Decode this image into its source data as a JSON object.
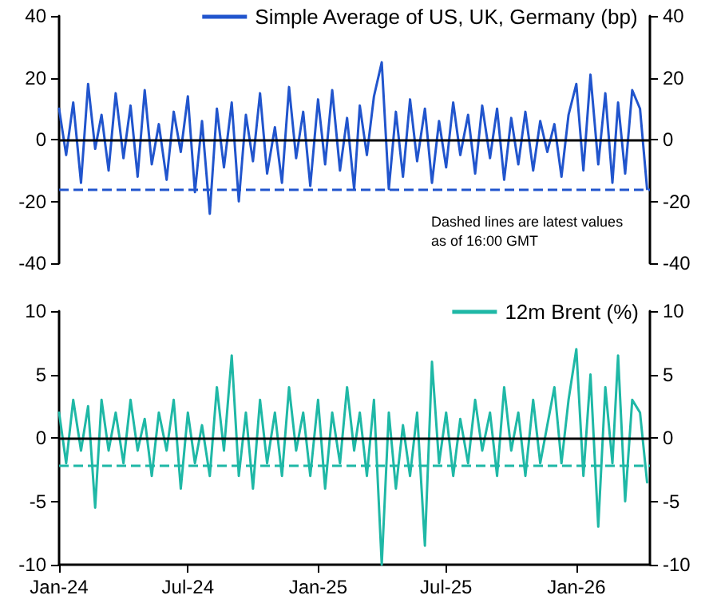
{
  "chart_data": [
    {
      "type": "line",
      "tick_labels": "y",
      "legend": "top right",
      "grid": false,
      "marker": "none",
      "line_style": "solid",
      "xlim": [
        "2024-01-01",
        "2026-04-15"
      ],
      "ylim": [
        -40,
        40
      ],
      "yticks": [
        -40,
        -20,
        0,
        20,
        40
      ],
      "y2lim": [
        -40,
        40
      ],
      "y2ticks": [
        -40,
        -20,
        0,
        20,
        40
      ],
      "x": [
        "2024-01-01",
        "2024-01-11",
        "2024-01-21",
        "2024-02-01",
        "2024-02-11",
        "2024-02-21",
        "2024-03-01",
        "2024-03-11",
        "2024-03-21",
        "2024-04-01",
        "2024-04-11",
        "2024-04-21",
        "2024-05-01",
        "2024-05-11",
        "2024-05-21",
        "2024-06-01",
        "2024-06-11",
        "2024-06-21",
        "2024-07-01",
        "2024-07-11",
        "2024-07-21",
        "2024-08-01",
        "2024-08-11",
        "2024-08-21",
        "2024-09-01",
        "2024-09-11",
        "2024-09-21",
        "2024-10-01",
        "2024-10-11",
        "2024-10-21",
        "2024-11-01",
        "2024-11-11",
        "2024-11-21",
        "2024-12-01",
        "2024-12-11",
        "2024-12-21",
        "2025-01-01",
        "2025-01-11",
        "2025-01-21",
        "2025-02-01",
        "2025-02-11",
        "2025-02-21",
        "2025-03-01",
        "2025-03-11",
        "2025-03-21",
        "2025-04-01",
        "2025-04-11",
        "2025-04-21",
        "2025-05-01",
        "2025-05-11",
        "2025-05-21",
        "2025-06-01",
        "2025-06-11",
        "2025-06-21",
        "2025-07-01",
        "2025-07-11",
        "2025-07-21",
        "2025-08-01",
        "2025-08-11",
        "2025-08-21",
        "2025-09-01",
        "2025-09-11",
        "2025-09-21",
        "2025-10-01",
        "2025-10-11",
        "2025-10-21",
        "2025-11-01",
        "2025-11-11",
        "2025-11-21",
        "2025-12-01",
        "2025-12-11",
        "2025-12-21",
        "2026-01-01",
        "2026-01-11",
        "2026-01-21",
        "2026-02-01",
        "2026-02-11",
        "2026-02-21",
        "2026-03-01",
        "2026-03-11",
        "2026-03-21",
        "2026-04-01",
        "2026-04-11"
      ],
      "series": [
        {
          "name": "Simple Average of US, UK, Germany (bp)",
          "color": "#2155cd",
          "values": [
            10,
            -5,
            12,
            -14,
            18,
            -3,
            8,
            -10,
            15,
            -6,
            11,
            -12,
            16,
            -8,
            5,
            -13,
            9,
            -4,
            14,
            -17,
            6,
            -24,
            10,
            -9,
            12,
            -20,
            8,
            -7,
            15,
            -11,
            4,
            -14,
            17,
            -6,
            9,
            -15,
            13,
            -8,
            16,
            -10,
            7,
            -16,
            11,
            -5,
            14,
            25,
            -16,
            9,
            -12,
            13,
            -7,
            10,
            -14,
            6,
            -9,
            12,
            -5,
            8,
            -11,
            11,
            -6,
            10,
            -13,
            7,
            -8,
            9,
            -10,
            6,
            -4,
            5,
            -12,
            8,
            18,
            -10,
            21,
            -8,
            15,
            -14,
            12,
            -11,
            16,
            10,
            -16
          ]
        }
      ],
      "ref_lines": [
        {
          "axis": "y",
          "value": 0,
          "color": "#000000",
          "line_style": "solid"
        },
        {
          "axis": "y",
          "value": -16,
          "color": "#2155cd",
          "line_style": "dashed"
        }
      ],
      "annotations": [
        "Dashed lines are latest values as of 16:00 GMT"
      ]
    },
    {
      "type": "line",
      "legend": "top right",
      "grid": false,
      "marker": "none",
      "line_style": "solid",
      "xlim": [
        "2024-01-01",
        "2026-04-15"
      ],
      "xticks": [
        {
          "value": "2024-01-01",
          "label": "Jan-24"
        },
        {
          "value": "2024-07-01",
          "label": "Jul-24"
        },
        {
          "value": "2025-01-01",
          "label": "Jan-25"
        },
        {
          "value": "2025-07-01",
          "label": "Jul-25"
        },
        {
          "value": "2026-01-01",
          "label": "Jan-26"
        }
      ],
      "ylim": [
        -10,
        10
      ],
      "yticks": [
        -10,
        -5,
        0,
        5,
        10
      ],
      "y2lim": [
        -10,
        10
      ],
      "y2ticks": [
        -10,
        -5,
        0,
        5,
        10
      ],
      "x": [
        "2024-01-01",
        "2024-01-11",
        "2024-01-21",
        "2024-02-01",
        "2024-02-11",
        "2024-02-21",
        "2024-03-01",
        "2024-03-11",
        "2024-03-21",
        "2024-04-01",
        "2024-04-11",
        "2024-04-21",
        "2024-05-01",
        "2024-05-11",
        "2024-05-21",
        "2024-06-01",
        "2024-06-11",
        "2024-06-21",
        "2024-07-01",
        "2024-07-11",
        "2024-07-21",
        "2024-08-01",
        "2024-08-11",
        "2024-08-21",
        "2024-09-01",
        "2024-09-11",
        "2024-09-21",
        "2024-10-01",
        "2024-10-11",
        "2024-10-21",
        "2024-11-01",
        "2024-11-11",
        "2024-11-21",
        "2024-12-01",
        "2024-12-11",
        "2024-12-21",
        "2025-01-01",
        "2025-01-11",
        "2025-01-21",
        "2025-02-01",
        "2025-02-11",
        "2025-02-21",
        "2025-03-01",
        "2025-03-11",
        "2025-03-21",
        "2025-04-01",
        "2025-04-11",
        "2025-04-21",
        "2025-05-01",
        "2025-05-11",
        "2025-05-21",
        "2025-06-01",
        "2025-06-11",
        "2025-06-21",
        "2025-07-01",
        "2025-07-11",
        "2025-07-21",
        "2025-08-01",
        "2025-08-11",
        "2025-08-21",
        "2025-09-01",
        "2025-09-11",
        "2025-09-21",
        "2025-10-01",
        "2025-10-11",
        "2025-10-21",
        "2025-11-01",
        "2025-11-11",
        "2025-11-21",
        "2025-12-01",
        "2025-12-11",
        "2025-12-21",
        "2026-01-01",
        "2026-01-11",
        "2026-01-21",
        "2026-02-01",
        "2026-02-11",
        "2026-02-21",
        "2026-03-01",
        "2026-03-11",
        "2026-03-21",
        "2026-04-01",
        "2026-04-11"
      ],
      "series": [
        {
          "name": "12m Brent (%)",
          "color": "#1fb8a6",
          "values": [
            2,
            -2,
            3,
            -1,
            2.5,
            -5.5,
            3,
            -1,
            2,
            -2,
            3,
            -1,
            1.5,
            -3,
            2,
            -1,
            3,
            -4,
            2,
            -2,
            1,
            -3,
            4,
            -1,
            6.5,
            -3,
            2,
            -4,
            3,
            -2,
            2,
            -3,
            4,
            -1,
            2,
            -3,
            3,
            -4,
            2,
            -2,
            4,
            -1,
            2,
            -3,
            3,
            -10,
            2,
            -4,
            1,
            -3,
            2,
            -8.5,
            6,
            -2,
            2,
            -3,
            1.5,
            -2,
            3,
            -1,
            2,
            -3,
            4,
            -1,
            2,
            -3,
            3,
            -2,
            1,
            4,
            -2,
            3,
            7,
            -3,
            5,
            -7,
            4,
            -2,
            6.5,
            -5,
            3,
            2,
            -3.5
          ]
        }
      ],
      "ref_lines": [
        {
          "axis": "y",
          "value": 0,
          "color": "#000000",
          "line_style": "solid"
        },
        {
          "axis": "y",
          "value": -2.2,
          "color": "#1fb8a6",
          "line_style": "dashed"
        }
      ]
    }
  ]
}
